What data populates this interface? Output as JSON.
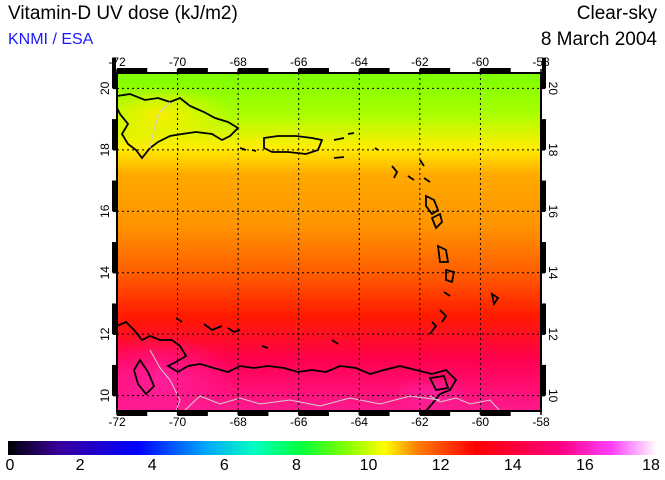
{
  "header": {
    "title": "Vitamin-D UV dose (kJ/m2)",
    "credit": "KNMI / ESA",
    "sky_condition": "Clear-sky",
    "date": "8 March 2004"
  },
  "map": {
    "lon_ticks": [
      "-72",
      "-70",
      "-68",
      "-66",
      "-64",
      "-62",
      "-60",
      "-58"
    ],
    "lat_ticks": [
      "10",
      "12",
      "14",
      "16",
      "18",
      "20"
    ],
    "lon_range": [
      -72,
      -58
    ],
    "lat_range": [
      9.5,
      20.5
    ],
    "grid": "dotted"
  },
  "colorbar": {
    "min": 0,
    "max": 18,
    "labels": [
      "0",
      "2",
      "4",
      "6",
      "8",
      "10",
      "12",
      "14",
      "16",
      "18"
    ],
    "colors": [
      "#000000",
      "#3a00a0",
      "#0000ff",
      "#00a0ff",
      "#00ffc0",
      "#00ff40",
      "#80ff00",
      "#ffff00",
      "#ff8000",
      "#ff0000",
      "#ff0080",
      "#ff40ff",
      "#ffffff"
    ]
  }
}
